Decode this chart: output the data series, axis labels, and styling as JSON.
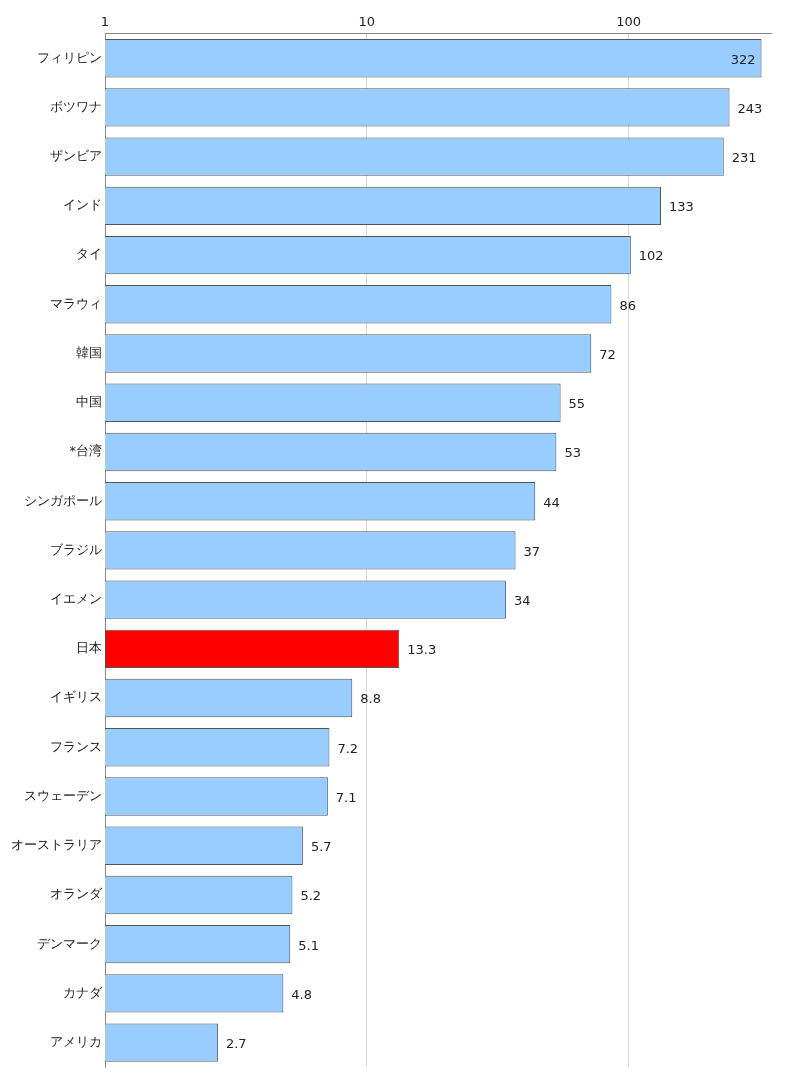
{
  "chart_data": {
    "type": "bar",
    "orientation": "horizontal",
    "log": "x",
    "categories": [
      "フィリピン",
      "ボツワナ",
      "ザンビア",
      "インド",
      "タイ",
      "マラウィ",
      "韓国",
      "中国",
      "*台湾",
      "シンガポール",
      "ブラジル",
      "イエメン",
      "日本",
      "イギリス",
      "フランス",
      "スウェーデン",
      "オーストラリア",
      "オランダ",
      "デンマーク",
      "カナダ",
      "アメリカ"
    ],
    "values": [
      322,
      243,
      231,
      133,
      102,
      86,
      72,
      55,
      53,
      44,
      37,
      34,
      13.3,
      8.8,
      7.2,
      7.1,
      5.7,
      5.2,
      5.1,
      4.8,
      2.7
    ],
    "colors": [
      "#99ccff",
      "#99ccff",
      "#99ccff",
      "#99ccff",
      "#99ccff",
      "#99ccff",
      "#99ccff",
      "#99ccff",
      "#99ccff",
      "#99ccff",
      "#99ccff",
      "#99ccff",
      "#ff0000",
      "#99ccff",
      "#99ccff",
      "#99ccff",
      "#99ccff",
      "#99ccff",
      "#99ccff",
      "#99ccff",
      "#99ccff"
    ],
    "xlim": [
      1,
      350
    ],
    "xticks": [
      1,
      10,
      100
    ],
    "grid": "x",
    "data_labels": true
  }
}
